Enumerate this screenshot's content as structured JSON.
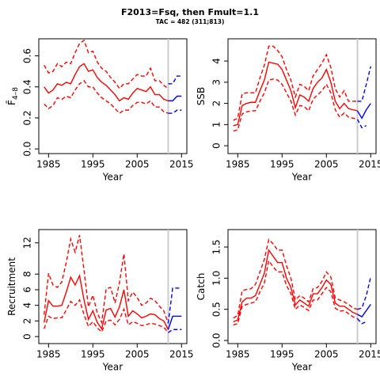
{
  "title": "F2013=Fsq, then Fmult=1.1",
  "subtitle": "TAC = 482 (311;813)",
  "chart_data": [
    {
      "type": "line",
      "xlabel": "Year",
      "ylabel": "F̄",
      "ylabel_sub": "4–8",
      "xlim": [
        1982.8,
        2016.2
      ],
      "xticks": [
        1985,
        1995,
        2005,
        2015
      ],
      "ylim": [
        -0.03,
        0.71
      ],
      "yticks": [
        {
          "value": 0,
          "label": "0.0"
        },
        {
          "value": 0.2,
          "label": "0.2"
        },
        {
          "value": 0.4,
          "label": "0.4"
        },
        {
          "value": 0.6,
          "label": "0.6"
        }
      ],
      "vline": 2012,
      "vline_color": "#cccccc",
      "series": [
        {
          "color": "#ff0000",
          "dashed": false,
          "x": [
            1984,
            1985,
            1986,
            1987,
            1988,
            1989,
            1990,
            1991,
            1992,
            1993,
            1994,
            1995,
            1996,
            1997,
            1998,
            1999,
            2000,
            2001,
            2002,
            2003,
            2004,
            2005,
            2006,
            2007,
            2008,
            2009,
            2010,
            2011,
            2012
          ],
          "values": [
            0.4,
            0.36,
            0.38,
            0.42,
            0.41,
            0.43,
            0.42,
            0.48,
            0.53,
            0.55,
            0.5,
            0.51,
            0.46,
            0.43,
            0.41,
            0.38,
            0.35,
            0.31,
            0.33,
            0.32,
            0.36,
            0.39,
            0.38,
            0.37,
            0.4,
            0.35,
            0.35,
            0.32,
            0.31
          ]
        },
        {
          "color": "#ff0000",
          "dashed": true,
          "x": [
            1984,
            1985,
            1986,
            1987,
            1988,
            1989,
            1990,
            1991,
            1992,
            1993,
            1994,
            1995,
            1996,
            1997,
            1998,
            1999,
            2000,
            2001,
            2002,
            2003,
            2004,
            2005,
            2006,
            2007,
            2008,
            2009,
            2010,
            2011,
            2012
          ],
          "values": [
            0.54,
            0.49,
            0.5,
            0.55,
            0.53,
            0.56,
            0.55,
            0.62,
            0.68,
            0.7,
            0.62,
            0.63,
            0.56,
            0.52,
            0.5,
            0.46,
            0.43,
            0.39,
            0.42,
            0.42,
            0.45,
            0.48,
            0.47,
            0.47,
            0.52,
            0.44,
            0.44,
            0.41,
            0.39
          ]
        },
        {
          "color": "#ff0000",
          "dashed": true,
          "x": [
            1984,
            1985,
            1986,
            1987,
            1988,
            1989,
            1990,
            1991,
            1992,
            1993,
            1994,
            1995,
            1996,
            1997,
            1998,
            1999,
            2000,
            2001,
            2002,
            2003,
            2004,
            2005,
            2006,
            2007,
            2008,
            2009,
            2010,
            2011,
            2012
          ],
          "values": [
            0.29,
            0.26,
            0.28,
            0.33,
            0.32,
            0.34,
            0.33,
            0.38,
            0.42,
            0.44,
            0.4,
            0.4,
            0.36,
            0.33,
            0.31,
            0.29,
            0.26,
            0.23,
            0.25,
            0.25,
            0.28,
            0.3,
            0.3,
            0.29,
            0.31,
            0.27,
            0.27,
            0.24,
            0.23
          ]
        },
        {
          "color": "#0000ff",
          "dashed": false,
          "x": [
            2012,
            2013,
            2014,
            2015
          ],
          "values": [
            0.31,
            0.31,
            0.34,
            0.34
          ]
        },
        {
          "color": "#0000ff",
          "dashed": true,
          "x": [
            2012,
            2013,
            2014,
            2015
          ],
          "values": [
            0.42,
            0.42,
            0.47,
            0.47
          ]
        },
        {
          "color": "#0000ff",
          "dashed": true,
          "x": [
            2012,
            2013,
            2014,
            2015
          ],
          "values": [
            0.23,
            0.23,
            0.25,
            0.25
          ]
        }
      ]
    },
    {
      "type": "line",
      "xlabel": "Year",
      "ylabel": "SSB",
      "xlim": [
        1982.8,
        2016.2
      ],
      "xticks": [
        1985,
        1995,
        2005,
        2015
      ],
      "ylim": [
        -0.37,
        5.05
      ],
      "yticks": [
        0,
        1,
        2,
        3,
        4
      ],
      "vline": 2012,
      "vline_color": "#cccccc",
      "series": [
        {
          "color": "#ff0000",
          "dashed": false,
          "x": [
            1984,
            1985,
            1986,
            1987,
            1988,
            1989,
            1990,
            1991,
            1992,
            1993,
            1994,
            1995,
            1996,
            1997,
            1998,
            1999,
            2000,
            2001,
            2002,
            2003,
            2004,
            2005,
            2006,
            2007,
            2008,
            2009,
            2010,
            2011,
            2012
          ],
          "values": [
            0.95,
            1.0,
            1.9,
            2.0,
            2.05,
            2.05,
            2.6,
            3.1,
            3.95,
            3.9,
            3.85,
            3.6,
            3.1,
            2.6,
            1.8,
            2.4,
            2.3,
            2.1,
            2.7,
            3.0,
            3.2,
            3.6,
            3.0,
            2.1,
            1.75,
            2.0,
            1.75,
            1.7,
            1.65
          ]
        },
        {
          "color": "#ff0000",
          "dashed": true,
          "x": [
            1984,
            1985,
            1986,
            1987,
            1988,
            1989,
            1990,
            1991,
            1992,
            1993,
            1994,
            1995,
            1996,
            1997,
            1998,
            1999,
            2000,
            2001,
            2002,
            2003,
            2004,
            2005,
            2006,
            2007,
            2008,
            2009,
            2010,
            2011,
            2012
          ],
          "values": [
            1.2,
            1.3,
            2.45,
            2.5,
            2.5,
            2.5,
            3.2,
            3.8,
            4.7,
            4.7,
            4.5,
            4.2,
            3.6,
            3.1,
            2.3,
            2.9,
            2.8,
            2.6,
            3.3,
            3.6,
            3.9,
            4.3,
            3.7,
            2.7,
            2.3,
            2.6,
            2.1,
            2.1,
            2.1
          ]
        },
        {
          "color": "#ff0000",
          "dashed": true,
          "x": [
            1984,
            1985,
            1986,
            1987,
            1988,
            1989,
            1990,
            1991,
            1992,
            1993,
            1994,
            1995,
            1996,
            1997,
            1998,
            1999,
            2000,
            2001,
            2002,
            2003,
            2004,
            2005,
            2006,
            2007,
            2008,
            2009,
            2010,
            2011,
            2012
          ],
          "values": [
            0.7,
            0.75,
            1.5,
            1.6,
            1.65,
            1.65,
            2.1,
            2.5,
            3.1,
            3.15,
            3.1,
            2.9,
            2.5,
            2.1,
            1.45,
            1.9,
            1.85,
            1.65,
            2.2,
            2.4,
            2.6,
            2.9,
            2.5,
            1.7,
            1.35,
            1.55,
            1.35,
            1.3,
            1.25
          ]
        },
        {
          "color": "#0000ff",
          "dashed": false,
          "x": [
            2012,
            2013,
            2014,
            2015
          ],
          "values": [
            1.65,
            1.3,
            1.7,
            2.0
          ]
        },
        {
          "color": "#0000ff",
          "dashed": true,
          "x": [
            2012,
            2013,
            2014,
            2015
          ],
          "values": [
            2.1,
            2.1,
            2.9,
            3.75
          ]
        },
        {
          "color": "#0000ff",
          "dashed": true,
          "x": [
            2012,
            2013,
            2014,
            2015
          ],
          "values": [
            1.25,
            0.85,
            0.95,
            null
          ]
        }
      ]
    },
    {
      "type": "line",
      "xlabel": "Year",
      "ylabel": "Recruitment",
      "xlim": [
        1982.8,
        2016.2
      ],
      "xticks": [
        1985,
        1995,
        2005,
        2015
      ],
      "ylim": [
        -0.9,
        13.7
      ],
      "yticks": [
        0,
        2,
        4,
        6,
        8,
        12
      ],
      "vline": 2012,
      "vline_color": "#cccccc",
      "series": [
        {
          "color": "#ff0000",
          "dashed": false,
          "x": [
            1984,
            1985,
            1986,
            1987,
            1988,
            1989,
            1990,
            1991,
            1992,
            1993,
            1994,
            1995,
            1996,
            1997,
            1998,
            1999,
            2000,
            2001,
            2002,
            2003,
            2004,
            2005,
            2006,
            2007,
            2008,
            2009,
            2010,
            2011,
            2012
          ],
          "values": [
            1.8,
            4.6,
            3.9,
            3.9,
            4.0,
            5.7,
            7.6,
            6.6,
            7.8,
            4.7,
            2.2,
            3.3,
            1.8,
            1.0,
            3.4,
            3.6,
            2.5,
            3.8,
            6.0,
            2.6,
            3.3,
            2.9,
            2.4,
            2.6,
            2.9,
            2.8,
            2.3,
            2.0,
            0.9
          ]
        },
        {
          "color": "#ff0000",
          "dashed": true,
          "x": [
            1984,
            1985,
            1986,
            1987,
            1988,
            1989,
            1990,
            1991,
            1992,
            1993,
            1994,
            1995,
            1996,
            1997,
            1998,
            1999,
            2000,
            2001,
            2002,
            2003,
            2004,
            2005,
            2006,
            2007,
            2008,
            2009,
            2010,
            2011,
            2012
          ],
          "values": [
            2.8,
            8.1,
            6.6,
            6.3,
            7.0,
            9.5,
            12.5,
            10.8,
            13.0,
            8.5,
            3.8,
            5.3,
            3.0,
            1.8,
            6.1,
            6.3,
            4.3,
            6.9,
            10.6,
            4.6,
            5.7,
            5.0,
            4.0,
            4.3,
            4.9,
            4.6,
            3.9,
            3.3,
            1.7
          ]
        },
        {
          "color": "#ff0000",
          "dashed": true,
          "x": [
            1984,
            1985,
            1986,
            1987,
            1988,
            1989,
            1990,
            1991,
            1992,
            1993,
            1994,
            1995,
            1996,
            1997,
            1998,
            1999,
            2000,
            2001,
            2002,
            2003,
            2004,
            2005,
            2006,
            2007,
            2008,
            2009,
            2010,
            2011,
            2012
          ],
          "values": [
            1.0,
            2.6,
            2.3,
            2.4,
            2.4,
            3.4,
            4.5,
            4.0,
            4.7,
            2.8,
            1.3,
            1.9,
            1.1,
            0.6,
            2.0,
            2.1,
            1.5,
            2.2,
            3.5,
            1.5,
            1.9,
            1.7,
            1.4,
            1.5,
            1.7,
            1.6,
            1.4,
            1.2,
            0.5
          ]
        },
        {
          "color": "#0000ff",
          "dashed": false,
          "x": [
            2012,
            2013,
            2014,
            2015
          ],
          "values": [
            0.9,
            2.6,
            2.6,
            2.6
          ]
        },
        {
          "color": "#0000ff",
          "dashed": true,
          "x": [
            2012,
            2013,
            2014,
            2015
          ],
          "values": [
            1.7,
            6.2,
            6.2,
            6.2
          ]
        },
        {
          "color": "#0000ff",
          "dashed": true,
          "x": [
            2012,
            2013,
            2014,
            2015
          ],
          "values": [
            0.5,
            0.9,
            0.9,
            0.9
          ]
        }
      ]
    },
    {
      "type": "line",
      "xlabel": "Year",
      "ylabel": "Catch",
      "xlim": [
        1982.8,
        2016.2
      ],
      "xticks": [
        1985,
        1995,
        2005,
        2015
      ],
      "ylim": [
        -0.05,
        1.78
      ],
      "yticks": [
        {
          "value": 0,
          "label": "0.0"
        },
        {
          "value": 0.5,
          "label": "0.5"
        },
        {
          "value": 1,
          "label": "1.0"
        },
        {
          "value": 1.5,
          "label": "1.5"
        }
      ],
      "vline": 2012,
      "vline_color": "#cccccc",
      "series": [
        {
          "color": "#ff0000",
          "dashed": false,
          "x": [
            1984,
            1985,
            1986,
            1987,
            1988,
            1989,
            1990,
            1991,
            1992,
            1993,
            1994,
            1995,
            1996,
            1997,
            1998,
            1999,
            2000,
            2001,
            2002,
            2003,
            2004,
            2005,
            2006,
            2007,
            2008,
            2009,
            2010,
            2011,
            2012
          ],
          "values": [
            0.3,
            0.33,
            0.62,
            0.68,
            0.68,
            0.72,
            0.9,
            1.08,
            1.45,
            1.35,
            1.25,
            1.25,
            1.0,
            0.85,
            0.57,
            0.65,
            0.6,
            0.55,
            0.75,
            0.75,
            0.85,
            0.97,
            0.9,
            0.6,
            0.55,
            0.55,
            0.5,
            0.45,
            0.42
          ]
        },
        {
          "color": "#ff0000",
          "dashed": true,
          "x": [
            1984,
            1985,
            1986,
            1987,
            1988,
            1989,
            1990,
            1991,
            1992,
            1993,
            1994,
            1995,
            1996,
            1997,
            1998,
            1999,
            2000,
            2001,
            2002,
            2003,
            2004,
            2005,
            2006,
            2007,
            2008,
            2009,
            2010,
            2011,
            2012
          ],
          "values": [
            0.36,
            0.4,
            0.8,
            0.82,
            0.83,
            0.9,
            1.1,
            1.3,
            1.62,
            1.55,
            1.45,
            1.45,
            1.2,
            1.0,
            0.65,
            0.72,
            0.68,
            0.62,
            0.83,
            0.85,
            0.95,
            1.1,
            1.02,
            0.68,
            0.65,
            0.62,
            0.58,
            0.52,
            0.5
          ]
        },
        {
          "color": "#ff0000",
          "dashed": true,
          "x": [
            1984,
            1985,
            1986,
            1987,
            1988,
            1989,
            1990,
            1991,
            1992,
            1993,
            1994,
            1995,
            1996,
            1997,
            1998,
            1999,
            2000,
            2001,
            2002,
            2003,
            2004,
            2005,
            2006,
            2007,
            2008,
            2009,
            2010,
            2011,
            2012
          ],
          "values": [
            0.25,
            0.27,
            0.55,
            0.58,
            0.6,
            0.62,
            0.78,
            0.92,
            1.28,
            1.18,
            1.1,
            1.1,
            0.88,
            0.75,
            0.5,
            0.57,
            0.53,
            0.48,
            0.65,
            0.65,
            0.75,
            0.85,
            0.78,
            0.52,
            0.47,
            0.48,
            0.43,
            0.38,
            0.35
          ]
        },
        {
          "color": "#0000ff",
          "dashed": false,
          "x": [
            2012,
            2013,
            2014,
            2015
          ],
          "values": [
            0.42,
            0.38,
            0.48,
            0.58
          ]
        },
        {
          "color": "#0000ff",
          "dashed": true,
          "x": [
            2012,
            2013,
            2014,
            2015
          ],
          "values": [
            0.5,
            0.52,
            0.72,
            1.02
          ]
        },
        {
          "color": "#0000ff",
          "dashed": true,
          "x": [
            2012,
            2013,
            2014,
            2015
          ],
          "values": [
            0.35,
            0.27,
            0.3,
            null
          ]
        }
      ]
    }
  ]
}
